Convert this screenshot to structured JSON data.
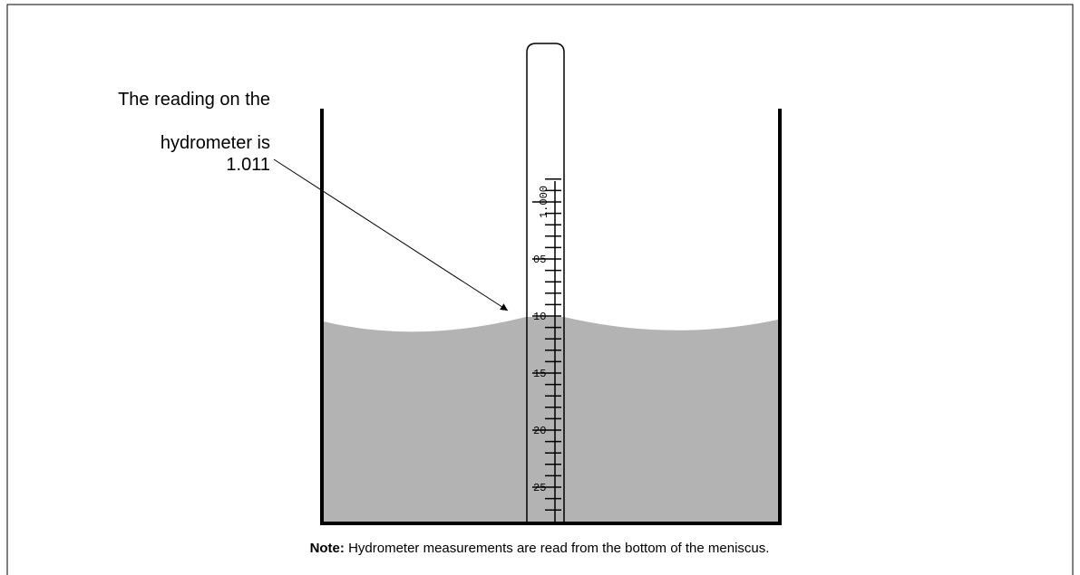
{
  "annotation": {
    "lines": [
      "The reading on the",
      "hydrometer is",
      "1.011"
    ]
  },
  "scale": {
    "labels": [
      "1.000",
      "05",
      "10",
      "15",
      "20",
      "25"
    ]
  },
  "note": {
    "label": "Note:",
    "text": "Hydrometer measurements are read from the bottom of the meniscus."
  }
}
